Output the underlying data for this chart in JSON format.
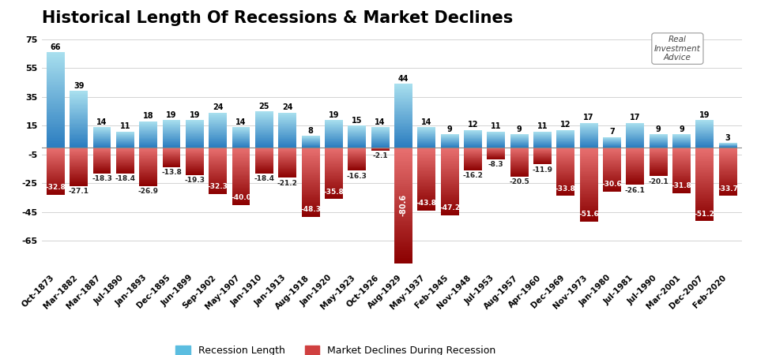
{
  "categories": [
    "Oct-1873",
    "Mar-1882",
    "Mar-1887",
    "Jul-1890",
    "Jan-1893",
    "Dec-1895",
    "Jun-1899",
    "Sep-1902",
    "May-1907",
    "Jan-1910",
    "Jan-1913",
    "Aug-1918",
    "Jan-1920",
    "May-1923",
    "Oct-1926",
    "Aug-1929",
    "May-1937",
    "Feb-1945",
    "Nov-1948",
    "Jul-1953",
    "Aug-1957",
    "Apr-1960",
    "Dec-1969",
    "Nov-1973",
    "Jan-1980",
    "Jul-1981",
    "Jul-1990",
    "Mar-2001",
    "Dec-2007",
    "Feb-2020"
  ],
  "recession_length": [
    66,
    39,
    14,
    11,
    18,
    19,
    19,
    24,
    14,
    25,
    24,
    8,
    19,
    15,
    14,
    44,
    14,
    9,
    12,
    11,
    9,
    11,
    12,
    17,
    7,
    17,
    9,
    9,
    19,
    3
  ],
  "market_decline": [
    -32.8,
    -27.1,
    -18.3,
    -18.4,
    -26.9,
    -13.8,
    -19.3,
    -32.3,
    -40.0,
    -18.4,
    -21.2,
    -48.3,
    -35.8,
    -16.3,
    -2.1,
    -80.6,
    -43.8,
    -47.2,
    -16.2,
    -8.3,
    -20.5,
    -11.9,
    -33.8,
    -51.6,
    -30.6,
    -26.1,
    -20.1,
    -31.8,
    -51.2,
    -33.7
  ],
  "title": "Historical Length Of Recessions & Market Declines",
  "title_fontsize": 15,
  "legend_labels": [
    "Recession Length",
    "Market Declines During Recession"
  ],
  "ylim": [
    -85,
    80
  ],
  "yticks": [
    -65,
    -45,
    -25,
    -5,
    15,
    35,
    55,
    75
  ],
  "ytick_labels": [
    "-65",
    "-45",
    "-25",
    "-5",
    "15",
    "35",
    "55",
    "75"
  ],
  "blue_light": "#A8DFEE",
  "blue_dark": "#2B7DC0",
  "red_light": "#E87070",
  "red_dark": "#8B0000",
  "bg_color": "#FFFFFF",
  "grid_color": "#CCCCCC",
  "label_fontsize": 7.0,
  "axis_label_fontsize": 7.5
}
